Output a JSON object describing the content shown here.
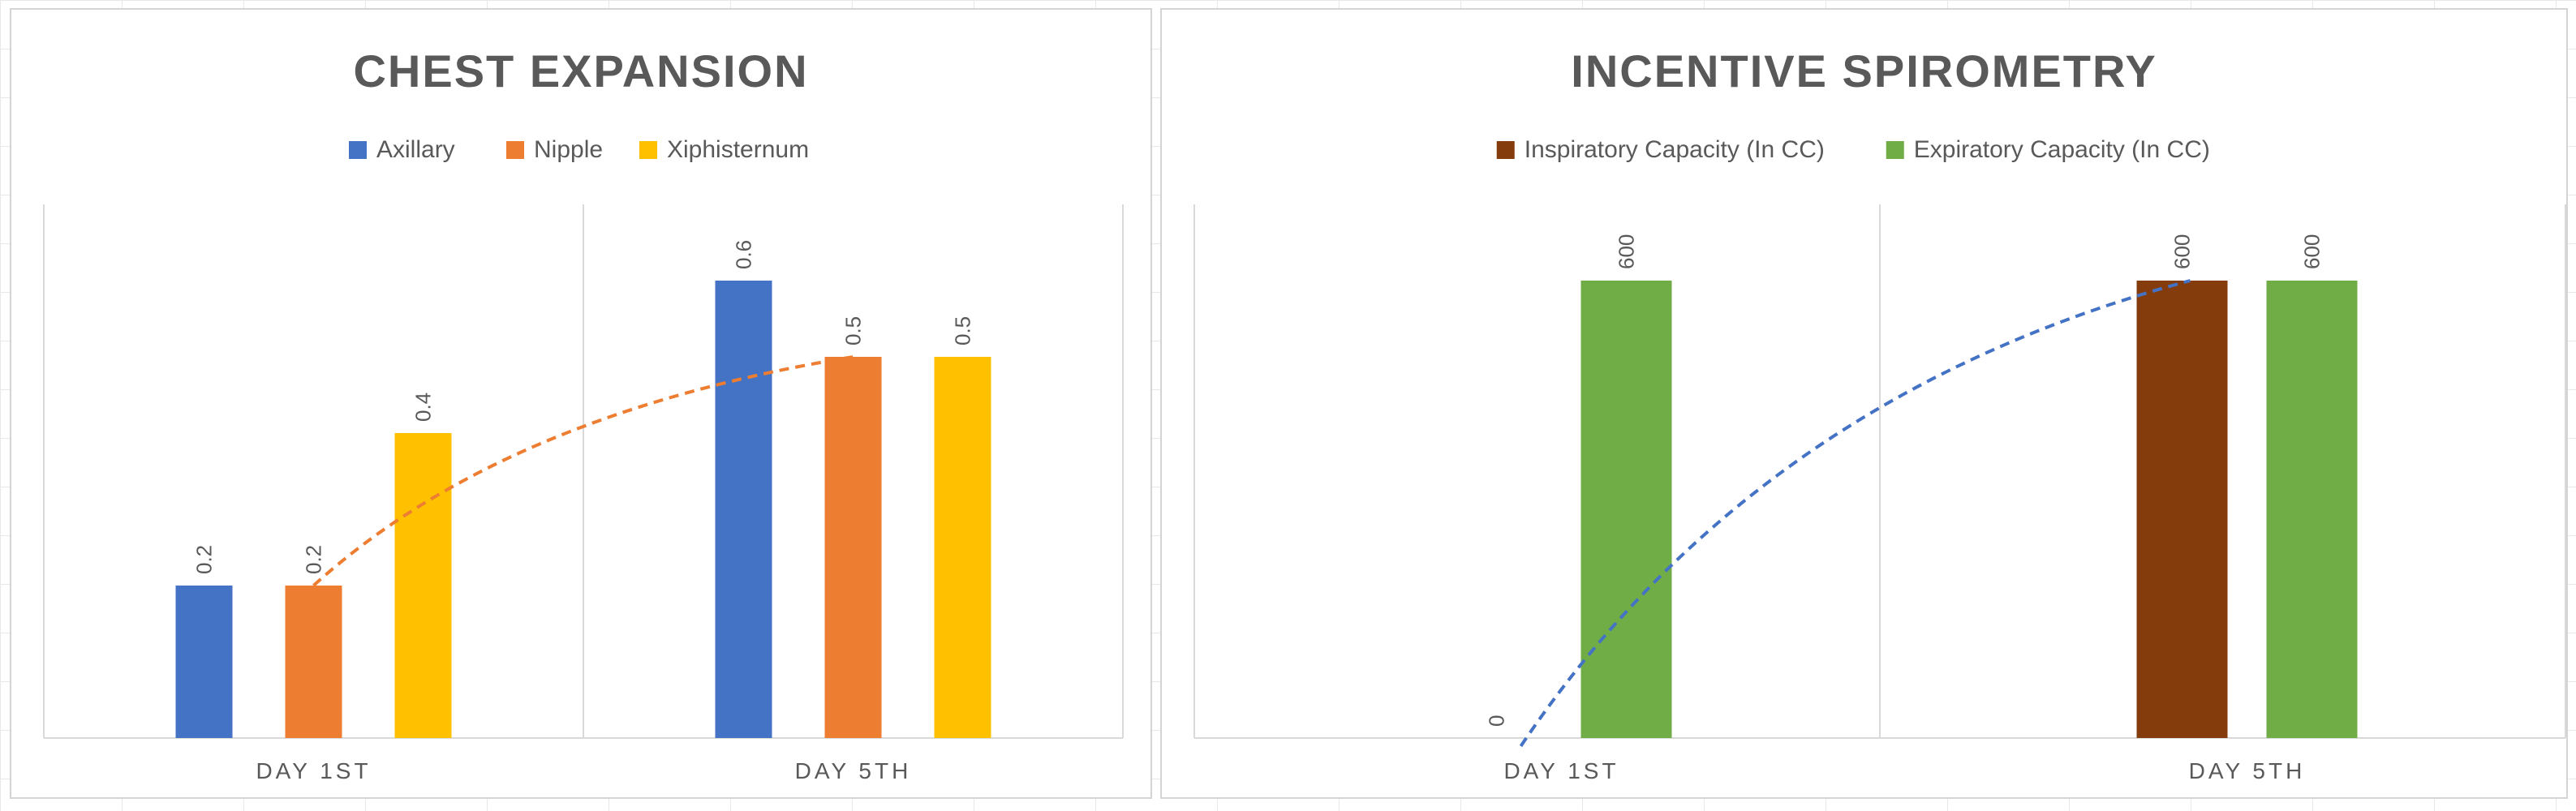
{
  "chart_data": [
    {
      "type": "bar",
      "title": "CHEST EXPANSION",
      "categories": [
        "DAY 1ST",
        "DAY 5TH"
      ],
      "series": [
        {
          "name": "Axillary",
          "values": [
            0.2,
            0.6
          ],
          "color": "#4472C4"
        },
        {
          "name": "Nipple",
          "values": [
            0.2,
            0.5
          ],
          "color": "#ED7D31"
        },
        {
          "name": "Xiphisternum",
          "values": [
            0.4,
            0.5
          ],
          "color": "#FFC000"
        }
      ],
      "ylim": [
        0,
        0.7
      ],
      "legend_position": "top",
      "trendline": {
        "series": "Nipple",
        "style": "dashed",
        "color": "#ED7D31",
        "type": "logarithmic"
      },
      "gridlines": "vertical-category-separators"
    },
    {
      "type": "bar",
      "title": "INCENTIVE SPIROMETRY",
      "categories": [
        "DAY 1ST",
        "DAY 5TH"
      ],
      "series": [
        {
          "name": "Inspiratory Capacity (In CC)",
          "values": [
            0,
            600
          ],
          "color": "#843C0C"
        },
        {
          "name": "Expiratory Capacity (In CC)",
          "values": [
            600,
            600
          ],
          "color": "#70AD47"
        }
      ],
      "ylim": [
        0,
        700
      ],
      "legend_position": "top",
      "trendline": {
        "series": "Inspiratory Capacity (In CC)",
        "style": "dashed",
        "color": "#4472C4",
        "type": "logarithmic"
      },
      "gridlines": "vertical-category-separators"
    }
  ]
}
